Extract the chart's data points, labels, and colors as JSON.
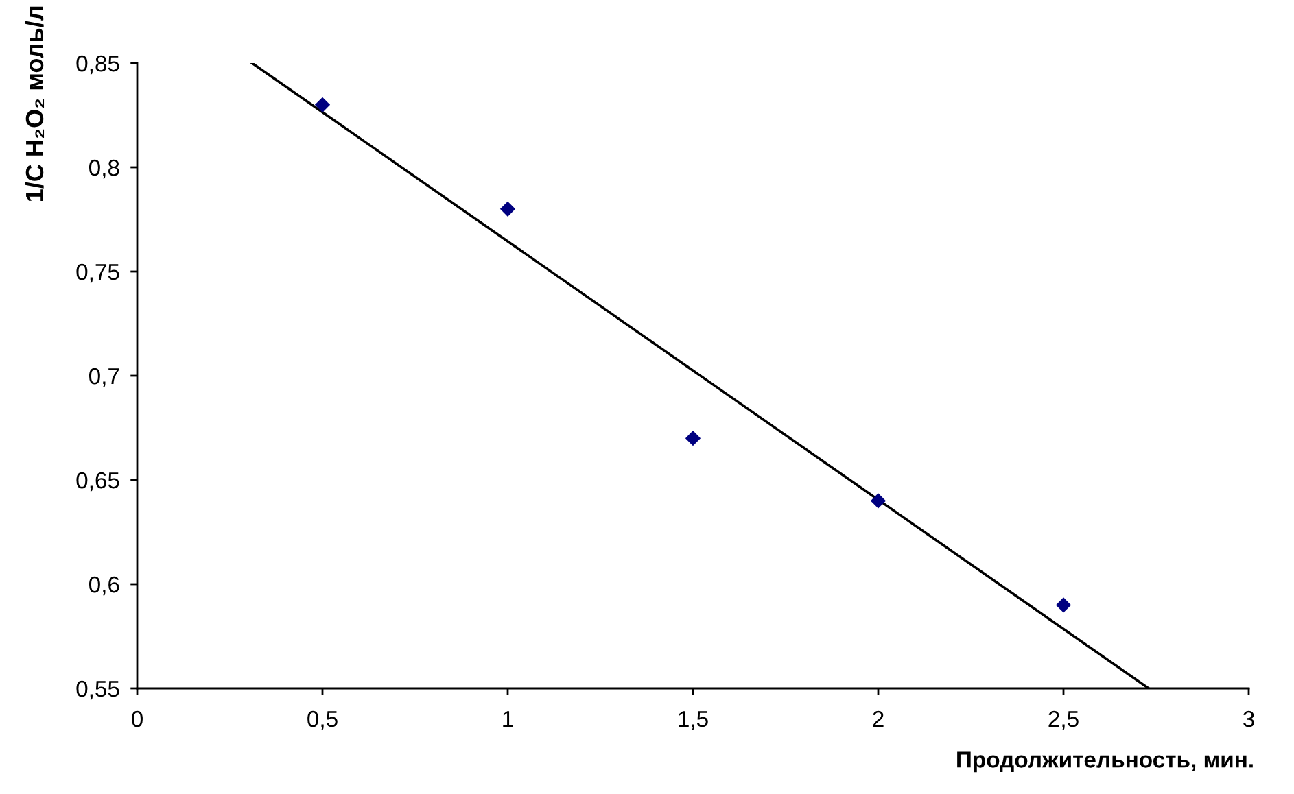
{
  "chart_data": {
    "type": "scatter",
    "xlabel": "Продолжительность, мин.",
    "ylabel": "1/C H₂O₂ моль/л",
    "x": [
      0.5,
      1,
      1.5,
      2,
      2.5
    ],
    "series": [
      {
        "color": "#000080",
        "marker": "diamond",
        "values": [
          0.83,
          0.78,
          0.67,
          0.64,
          0.59
        ]
      },
      {
        "type": "line",
        "color": "#000000",
        "marker": "none",
        "line_style": "solid",
        "x": [
          0.31,
          2.73
        ],
        "values": [
          0.85,
          0.55
        ]
      }
    ],
    "xlim": [
      0,
      3
    ],
    "ylim": [
      0.55,
      0.85
    ],
    "xticks": [
      0,
      {
        "value": 0.5,
        "label": "0,5"
      },
      1,
      {
        "value": 1.5,
        "label": "1,5"
      },
      2,
      {
        "value": 2.5,
        "label": "2,5"
      },
      3
    ],
    "yticks": [
      {
        "value": 0.55,
        "label": "0,55"
      },
      {
        "value": 0.6,
        "label": "0,6"
      },
      {
        "value": 0.65,
        "label": "0,65"
      },
      {
        "value": 0.7,
        "label": "0,7"
      },
      {
        "value": 0.75,
        "label": "0,75"
      },
      {
        "value": 0.8,
        "label": "0,8"
      },
      {
        "value": 0.85,
        "label": "0,85"
      }
    ]
  }
}
